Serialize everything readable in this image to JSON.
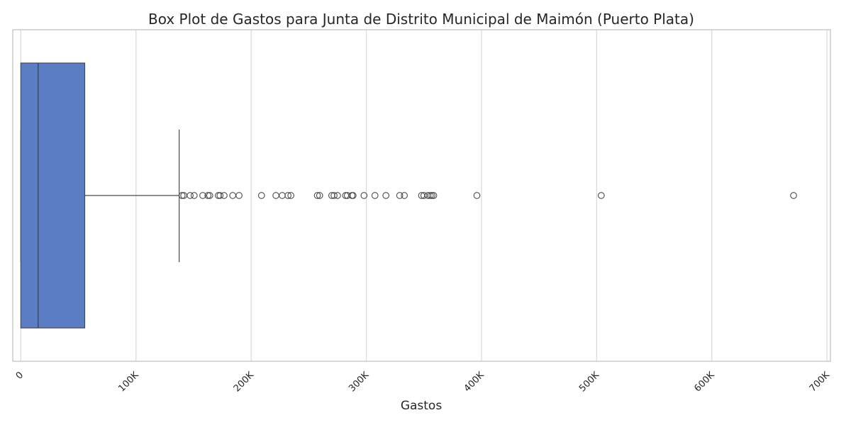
{
  "chart_data": {
    "type": "box",
    "title": "Box Plot de Gastos para Junta de Distrito Municipal de Maimón (Puerto Plata)",
    "xlabel": "Gastos",
    "ylabel": "",
    "xlim": [
      -7000,
      703000
    ],
    "x_ticks": [
      {
        "value": 0,
        "label": "0"
      },
      {
        "value": 100000,
        "label": "100K"
      },
      {
        "value": 200000,
        "label": "200K"
      },
      {
        "value": 300000,
        "label": "300K"
      },
      {
        "value": 400000,
        "label": "400K"
      },
      {
        "value": 500000,
        "label": "500K"
      },
      {
        "value": 600000,
        "label": "600K"
      },
      {
        "value": 700000,
        "label": "700K"
      }
    ],
    "grid": true,
    "box": {
      "min": 0,
      "q1": 0,
      "median": 15000,
      "q3": 55500,
      "whisker_high": 137500,
      "color": "#5a7dc3"
    },
    "outliers": [
      140000,
      141500,
      147000,
      150500,
      158000,
      162500,
      164000,
      171500,
      173000,
      176500,
      184000,
      189500,
      209000,
      221500,
      227000,
      232000,
      234500,
      257500,
      259500,
      270000,
      272000,
      275000,
      282000,
      283500,
      287500,
      288500,
      298000,
      307500,
      317000,
      329000,
      333000,
      348000,
      350000,
      353500,
      355500,
      357000,
      358500,
      396000,
      504000,
      671000
    ]
  }
}
